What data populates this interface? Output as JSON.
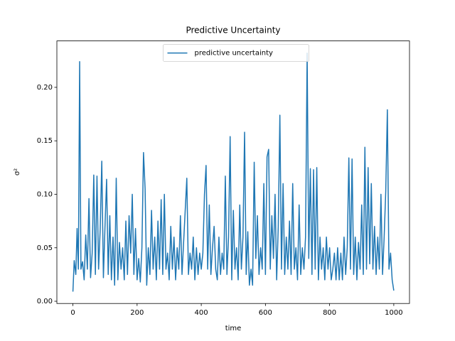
{
  "chart_data": {
    "type": "line",
    "title": "Predictive Uncertainty",
    "xlabel": "time",
    "ylabel": "σ²",
    "legend": "upper center",
    "color": "#1f77b4",
    "series": [
      {
        "name": "predictive uncertainty",
        "color": "#1f77b4",
        "x": [
          0,
          4,
          9,
          13,
          17,
          21,
          25,
          30,
          35,
          40,
          45,
          50,
          55,
          60,
          65,
          70,
          75,
          80,
          85,
          90,
          95,
          100,
          105,
          110,
          115,
          120,
          125,
          130,
          135,
          140,
          145,
          150,
          155,
          160,
          165,
          170,
          175,
          180,
          185,
          190,
          195,
          200,
          205,
          210,
          215,
          220,
          225,
          230,
          235,
          240,
          245,
          250,
          255,
          260,
          265,
          270,
          275,
          280,
          285,
          290,
          295,
          300,
          305,
          310,
          315,
          320,
          325,
          330,
          335,
          340,
          345,
          355,
          360,
          365,
          370,
          375,
          380,
          385,
          390,
          395,
          400,
          405,
          410,
          415,
          420,
          425,
          430,
          435,
          440,
          445,
          450,
          455,
          460,
          465,
          470,
          475,
          480,
          485,
          490,
          495,
          500,
          505,
          510,
          515,
          520,
          525,
          530,
          535,
          540,
          545,
          550,
          555,
          560,
          565,
          570,
          575,
          580,
          585,
          590,
          595,
          600,
          605,
          610,
          615,
          620,
          625,
          630,
          635,
          640,
          645,
          650,
          655,
          660,
          665,
          670,
          675,
          680,
          685,
          690,
          695,
          700,
          705,
          710,
          715,
          720,
          725,
          730,
          735,
          740,
          745,
          750,
          755,
          760,
          765,
          770,
          775,
          780,
          785,
          790,
          795,
          800,
          805,
          810,
          815,
          820,
          825,
          830,
          835,
          840,
          845,
          850,
          855,
          860,
          865,
          870,
          875,
          880,
          885,
          890,
          895,
          900,
          905,
          910,
          915,
          920,
          925,
          930,
          935,
          940,
          945,
          950,
          955,
          960,
          965,
          970,
          975,
          980,
          985,
          990,
          995,
          1000
        ],
        "values": [
          0.009,
          0.038,
          0.025,
          0.068,
          0.03,
          0.224,
          0.03,
          0.037,
          0.02,
          0.062,
          0.03,
          0.096,
          0.022,
          0.045,
          0.118,
          0.025,
          0.117,
          0.03,
          0.067,
          0.131,
          0.022,
          0.07,
          0.114,
          0.025,
          0.08,
          0.02,
          0.06,
          0.015,
          0.115,
          0.02,
          0.055,
          0.03,
          0.05,
          0.02,
          0.075,
          0.025,
          0.08,
          0.045,
          0.1,
          0.025,
          0.068,
          0.02,
          0.04,
          0.018,
          0.05,
          0.139,
          0.105,
          0.015,
          0.05,
          0.025,
          0.085,
          0.03,
          0.06,
          0.02,
          0.075,
          0.03,
          0.095,
          0.025,
          0.1,
          0.03,
          0.045,
          0.02,
          0.07,
          0.03,
          0.06,
          0.02,
          0.05,
          0.03,
          0.08,
          0.025,
          0.055,
          0.115,
          0.025,
          0.045,
          0.03,
          0.06,
          0.02,
          0.05,
          0.025,
          0.045,
          0.03,
          0.045,
          0.1,
          0.127,
          0.03,
          0.09,
          0.025,
          0.05,
          0.07,
          0.03,
          0.02,
          0.06,
          0.025,
          0.045,
          0.03,
          0.117,
          0.025,
          0.06,
          0.154,
          0.02,
          0.085,
          0.03,
          0.05,
          0.02,
          0.09,
          0.03,
          0.06,
          0.158,
          0.025,
          0.065,
          0.015,
          0.03,
          0.015,
          0.13,
          0.04,
          0.08,
          0.025,
          0.05,
          0.03,
          0.11,
          0.025,
          0.135,
          0.142,
          0.03,
          0.08,
          0.04,
          0.1,
          0.02,
          0.07,
          0.174,
          0.03,
          0.11,
          0.025,
          0.06,
          0.03,
          0.075,
          0.025,
          0.11,
          0.03,
          0.05,
          0.02,
          0.09,
          0.025,
          0.05,
          0.03,
          0.06,
          0.232,
          0.04,
          0.124,
          0.025,
          0.123,
          0.03,
          0.125,
          0.02,
          0.06,
          0.03,
          0.05,
          0.02,
          0.06,
          0.03,
          0.05,
          0.02,
          0.03,
          0.045,
          0.02,
          0.05,
          0.02,
          0.045,
          0.02,
          0.06,
          0.025,
          0.05,
          0.134,
          0.03,
          0.133,
          0.025,
          0.06,
          0.02,
          0.055,
          0.03,
          0.09,
          0.025,
          0.144,
          0.03,
          0.125,
          0.035,
          0.11,
          0.03,
          0.07,
          0.025,
          0.06,
          0.03,
          0.1,
          0.025,
          0.06,
          0.103,
          0.179,
          0.03,
          0.045,
          0.02,
          0.01
        ]
      }
    ],
    "xlim": [
      -50,
      1049
    ],
    "ylim": [
      -0.0021,
      0.2434
    ],
    "xticks": [
      0,
      200,
      400,
      600,
      800,
      1000
    ],
    "yticks": [
      {
        "value": 0,
        "label": "0.00"
      },
      {
        "value": 0.05,
        "label": "0.05"
      },
      {
        "value": 0.1,
        "label": "0.10"
      },
      {
        "value": 0.15,
        "label": "0.15"
      },
      {
        "value": 0.2,
        "label": "0.20"
      }
    ]
  }
}
